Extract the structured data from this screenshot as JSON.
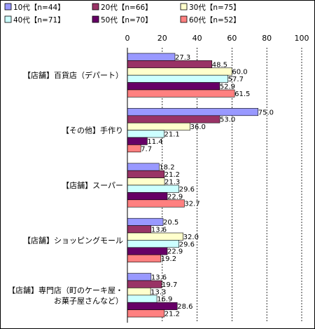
{
  "chart_data": {
    "type": "bar",
    "orientation": "horizontal",
    "title": "",
    "xlabel": "",
    "ylabel": "",
    "xlim": [
      0,
      100
    ],
    "ticks": [
      0,
      20,
      40,
      60,
      80,
      100
    ],
    "grid": true,
    "legend_position": "top",
    "categories": [
      "【店舗】百貨店（デパート）",
      "【その他】手作り",
      "【店舗】スーパー",
      "【店舗】ショッピングモール",
      [
        "【店舗】専門店（町のケーキ屋・",
        "お菓子屋さんなど）"
      ]
    ],
    "series": [
      {
        "name": "10代【n=44】",
        "color": "#9999ff",
        "values": [
          27.3,
          75.0,
          18.2,
          20.5,
          13.6
        ]
      },
      {
        "name": "20代【n=66】",
        "color": "#993366",
        "values": [
          48.5,
          53.0,
          21.2,
          13.6,
          19.7
        ]
      },
      {
        "name": "30代【n=75】",
        "color": "#ffffcc",
        "values": [
          60.0,
          36.0,
          21.3,
          32.0,
          13.3
        ]
      },
      {
        "name": "40代【n=71】",
        "color": "#ccffff",
        "values": [
          57.7,
          21.1,
          29.6,
          29.6,
          16.9
        ]
      },
      {
        "name": "50代【n=70】",
        "color": "#660066",
        "values": [
          52.9,
          11.4,
          22.9,
          22.9,
          28.6
        ]
      },
      {
        "name": "60代【n=52】",
        "color": "#ff8080",
        "values": [
          61.5,
          7.7,
          32.7,
          19.2,
          21.2
        ]
      }
    ]
  }
}
